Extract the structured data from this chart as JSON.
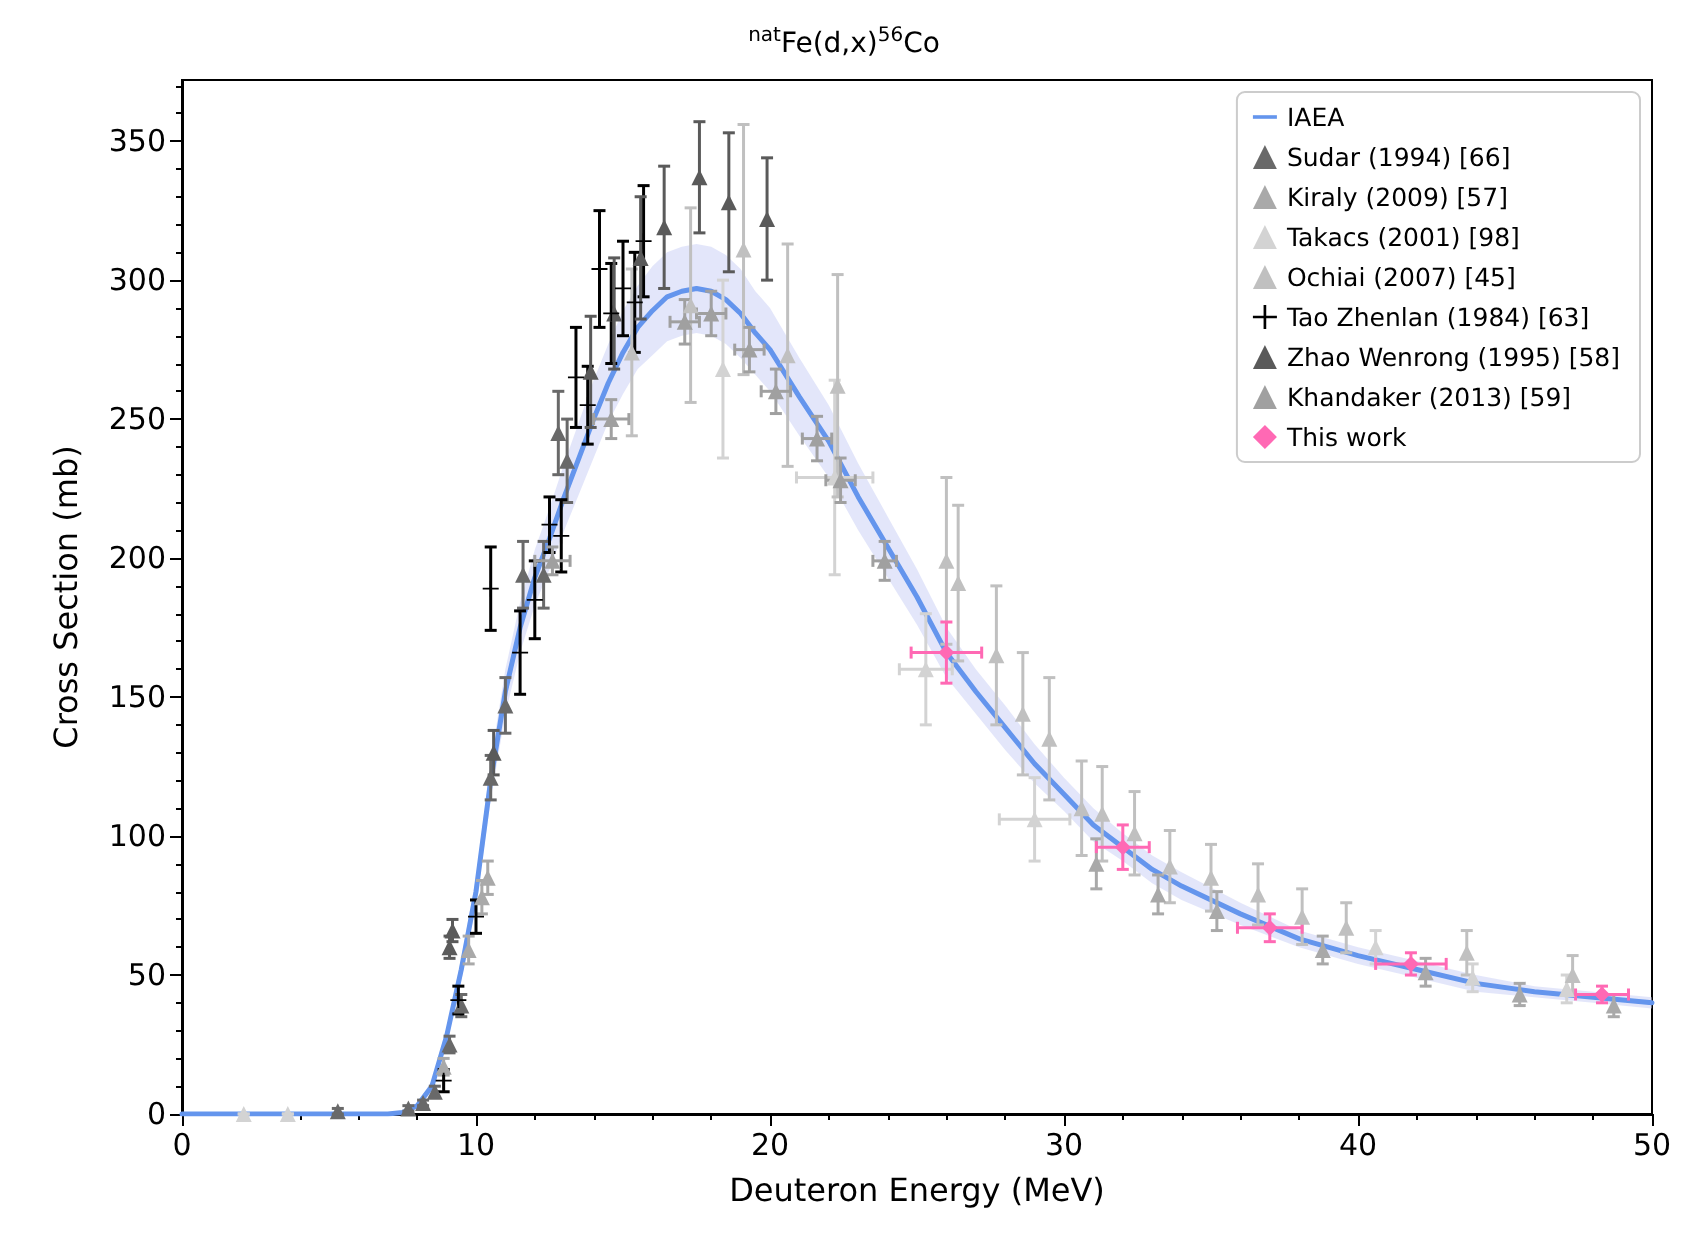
{
  "chart_data": {
    "type": "scatter",
    "title": "$^{nat}$Fe(d,x)$^{56}$Co",
    "xlabel": "Deuteron Energy (MeV)",
    "ylabel": "Cross Section (mb)",
    "xlim": [
      0,
      50
    ],
    "xticks": [
      0,
      10,
      20,
      30,
      40,
      50
    ],
    "ylim": [
      0,
      372
    ],
    "yticks": [
      0,
      50,
      100,
      150,
      200,
      250,
      300,
      350
    ],
    "grid": false,
    "legend": "top right",
    "series": [
      {
        "name": "IAEA",
        "type": "line",
        "color": "#6495ed",
        "x": [
          0,
          5,
          7,
          7.5,
          8,
          8.5,
          9,
          9.5,
          10,
          10.5,
          11,
          11.5,
          12,
          12.5,
          13,
          13.5,
          14,
          14.5,
          15,
          15.5,
          16,
          16.5,
          17,
          17.5,
          18,
          18.5,
          19,
          19.5,
          20,
          21,
          22,
          23,
          24,
          25,
          26,
          27,
          28,
          29,
          30,
          31,
          32,
          33,
          34,
          36,
          38,
          40,
          42,
          44,
          46,
          48,
          50
        ],
        "values": [
          0,
          0,
          0,
          0.5,
          3,
          10,
          28,
          52,
          80,
          120,
          152,
          175,
          193,
          207,
          222,
          236,
          250,
          263,
          274,
          283,
          289,
          294,
          296,
          297,
          296,
          293,
          288,
          281,
          275,
          258,
          242,
          222,
          204,
          186,
          166,
          152,
          139,
          126,
          115,
          104,
          96,
          88,
          82,
          72,
          63,
          57,
          52,
          47,
          44,
          42,
          40
        ],
        "lower": [
          0,
          0,
          0,
          0,
          2,
          8,
          25,
          48,
          75,
          113,
          144,
          166,
          183,
          196,
          210,
          223,
          236,
          249,
          259,
          268,
          273,
          278,
          280,
          281,
          280,
          277,
          272,
          266,
          260,
          244,
          229,
          210,
          193,
          176,
          157,
          144,
          131,
          119,
          109,
          98,
          91,
          83,
          77,
          68,
          60,
          54,
          49,
          44,
          42,
          40,
          38
        ],
        "upper": [
          0,
          0,
          0,
          1,
          4,
          12,
          31,
          56,
          85,
          127,
          160,
          184,
          203,
          218,
          234,
          249,
          264,
          277,
          289,
          298,
          305,
          310,
          312,
          313,
          312,
          309,
          304,
          296,
          290,
          272,
          255,
          234,
          215,
          196,
          175,
          160,
          147,
          133,
          121,
          110,
          101,
          93,
          87,
          76,
          66,
          60,
          55,
          50,
          46,
          44,
          42
        ]
      },
      {
        "name": "Sudar (1994) [66]",
        "color": "#696969",
        "marker": "triangle",
        "x": [
          5.3,
          7.7,
          8.2,
          8.6,
          9.1,
          9.5,
          10.5,
          11.0,
          11.6,
          12.3,
          12.8,
          13.1
        ],
        "values": [
          1,
          2,
          4,
          8,
          25,
          39,
          121,
          147,
          194,
          194,
          245,
          235
        ],
        "errors": [
          1,
          1,
          1,
          2,
          3,
          4,
          8,
          10,
          12,
          12,
          15,
          15
        ]
      },
      {
        "name": "Kiraly (2009) [57]",
        "color": "#a9a9a9",
        "marker": "triangle",
        "x": [
          8.9,
          9.75,
          10.2,
          10.4,
          31.1,
          33.2,
          35.2,
          38.8,
          42.3,
          45.5,
          48.7
        ],
        "values": [
          17,
          59,
          78,
          85,
          90,
          79,
          73,
          59,
          51,
          43,
          39
        ],
        "errors": [
          3,
          5,
          6,
          6,
          9,
          7,
          7,
          5,
          5,
          4,
          4
        ]
      },
      {
        "name": "Takacs (2001) [98]",
        "color": "#d3d3d3",
        "marker": "triangle",
        "x": [
          2.1,
          3.6,
          18.4,
          22.2,
          25.3,
          29.0,
          40.6,
          43.9,
          47.1
        ],
        "values": [
          0,
          0,
          268,
          229,
          160,
          106,
          60,
          49,
          45
        ],
        "errors": [
          0,
          0,
          32,
          35,
          20,
          15,
          6,
          5,
          5
        ],
        "xerrors": [
          null,
          null,
          null,
          1.3,
          0.9,
          1.2,
          null,
          null,
          null
        ]
      },
      {
        "name": "Ochiai (2007) [45]",
        "color": "#c0c0c0",
        "marker": "triangle",
        "x": [
          15.3,
          17.3,
          19.1,
          20.6,
          22.3,
          26.0,
          26.4,
          27.7,
          28.6,
          29.5,
          30.6,
          31.3,
          32.4,
          33.6,
          35.0,
          36.6,
          38.1,
          39.6,
          43.7,
          47.3
        ],
        "values": [
          274,
          291,
          311,
          273,
          262,
          199,
          191,
          165,
          144,
          135,
          110,
          108,
          101,
          89,
          85,
          79,
          71,
          67,
          58,
          50
        ],
        "errors": [
          30,
          35,
          45,
          40,
          40,
          30,
          28,
          25,
          22,
          22,
          17,
          17,
          15,
          13,
          12,
          11,
          10,
          9,
          8,
          7
        ]
      },
      {
        "name": "Tao Zhenlan (1984) [63]",
        "color": "#000000",
        "marker": "cross",
        "x": [
          8.9,
          9.4,
          10.0,
          10.5,
          11.5,
          12.0,
          12.5,
          12.9,
          13.4,
          13.8,
          14.2,
          14.6,
          15.0,
          15.4,
          15.7
        ],
        "values": [
          12,
          41,
          71,
          189,
          166,
          185,
          212,
          208,
          265,
          255,
          304,
          288,
          297,
          292,
          314
        ],
        "errors": [
          4,
          5,
          6,
          15,
          15,
          14,
          10,
          13,
          18,
          14,
          21,
          18,
          17,
          18,
          20
        ]
      },
      {
        "name": "Zhao Wenrong (1995) [58]",
        "color": "#5a5a5a",
        "marker": "triangle",
        "x": [
          9.1,
          9.2,
          10.6,
          13.9,
          14.7,
          15.6,
          16.4,
          17.6,
          18.6,
          19.9
        ],
        "values": [
          60,
          66,
          130,
          267,
          288,
          308,
          319,
          337,
          328,
          322
        ],
        "errors": [
          4,
          4,
          8,
          20,
          20,
          22,
          22,
          20,
          25,
          22
        ]
      },
      {
        "name": "Khandaker (2013) [59]",
        "color": "#a0a0a0",
        "marker": "triangle",
        "x": [
          12.6,
          14.6,
          17.1,
          18.0,
          19.3,
          20.2,
          21.6,
          22.4,
          23.9
        ],
        "values": [
          199,
          250,
          285,
          288,
          275,
          260,
          243,
          228,
          199
        ],
        "errors": [
          5,
          7,
          8,
          8,
          8,
          8,
          8,
          8,
          7
        ],
        "xerrors": [
          0.6,
          0.6,
          0.5,
          0.5,
          0.5,
          0.5,
          0.5,
          0.5,
          0.4
        ]
      },
      {
        "name": "This work",
        "color": "#ff69b4",
        "marker": "diamond",
        "x": [
          26.0,
          32.0,
          37.0,
          41.8,
          48.3
        ],
        "values": [
          166,
          96,
          67,
          54,
          43
        ],
        "errors": [
          11,
          8,
          5,
          4,
          3
        ],
        "xerrors": [
          1.2,
          0.9,
          1.1,
          1.2,
          0.9
        ]
      }
    ]
  }
}
